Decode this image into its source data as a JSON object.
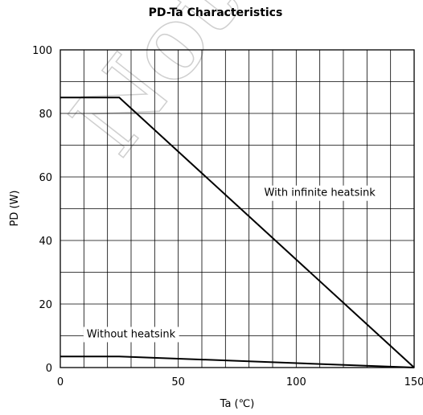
{
  "chart_data": {
    "type": "line",
    "title": "PD-Ta Characteristics",
    "xlabel": "Ta (℃)",
    "ylabel": "PD (W)",
    "xlim": [
      0,
      150
    ],
    "ylim": [
      0,
      100
    ],
    "xticks": [
      0,
      50,
      100,
      150
    ],
    "yticks": [
      0,
      20,
      40,
      60,
      80,
      100
    ],
    "grid": true,
    "series": [
      {
        "name": "With infinite heatsink",
        "x": [
          0,
          25,
          150
        ],
        "y": [
          85,
          85,
          0
        ]
      },
      {
        "name": "Without heatsink",
        "x": [
          0,
          25,
          150
        ],
        "y": [
          3.5,
          3.5,
          0
        ]
      }
    ],
    "annotations": [
      {
        "text": "With infinite heatsink",
        "x": 110,
        "y": 54
      },
      {
        "text": "Without heatsink",
        "x": 30,
        "y": 9.5
      }
    ]
  },
  "watermark": "Not Rec"
}
